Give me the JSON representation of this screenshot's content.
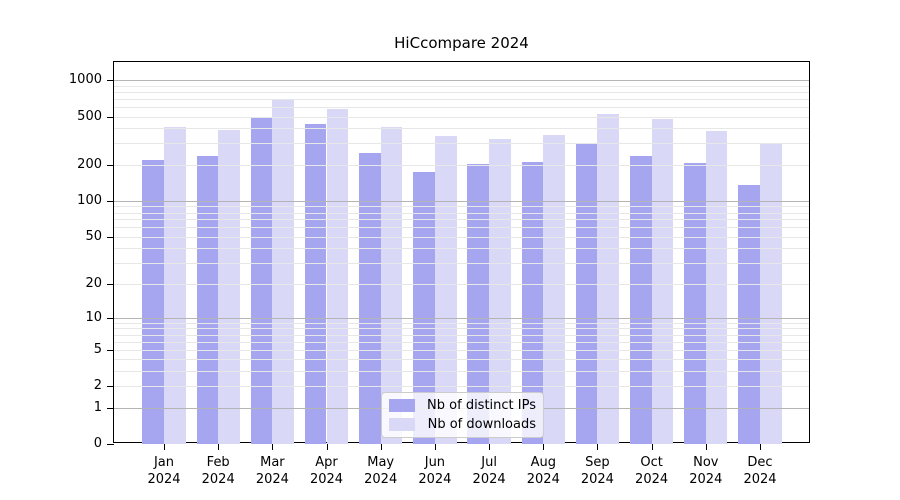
{
  "title": "HiCcompare 2024",
  "chart_data": {
    "type": "bar",
    "title": "HiCcompare 2024",
    "xlabel": "",
    "ylabel": "",
    "categories": [
      "Jan",
      "Feb",
      "Mar",
      "Apr",
      "May",
      "Jun",
      "Jul",
      "Aug",
      "Sep",
      "Oct",
      "Nov",
      "Dec"
    ],
    "year_label": "2024",
    "series": [
      {
        "name": "Nb of distinct IPs",
        "color": "#a5a5f0",
        "values": [
          220,
          237,
          500,
          435,
          252,
          173,
          204,
          212,
          295,
          237,
          208,
          135
        ]
      },
      {
        "name": "Nb of downloads",
        "color": "#d9d9f7",
        "values": [
          410,
          389,
          695,
          577,
          410,
          347,
          328,
          354,
          525,
          478,
          380,
          298
        ]
      }
    ],
    "yscale": "log1p",
    "ylim": [
      0,
      1350
    ],
    "yticks": [
      0,
      1,
      2,
      5,
      10,
      20,
      50,
      100,
      200,
      500,
      1000
    ],
    "major_gridlines": [
      1,
      10,
      100,
      1000
    ],
    "minor_gridlines": [
      2,
      3,
      4,
      5,
      6,
      7,
      8,
      9,
      20,
      30,
      40,
      50,
      60,
      70,
      80,
      90,
      200,
      300,
      400,
      500,
      600,
      700,
      800,
      900
    ],
    "grid": true,
    "legend_position": "lower center"
  },
  "colors": {
    "background": "#ffffff",
    "axis": "#000000",
    "major_grid": "#b5b5b5",
    "minor_grid": "#e7e7e7"
  }
}
